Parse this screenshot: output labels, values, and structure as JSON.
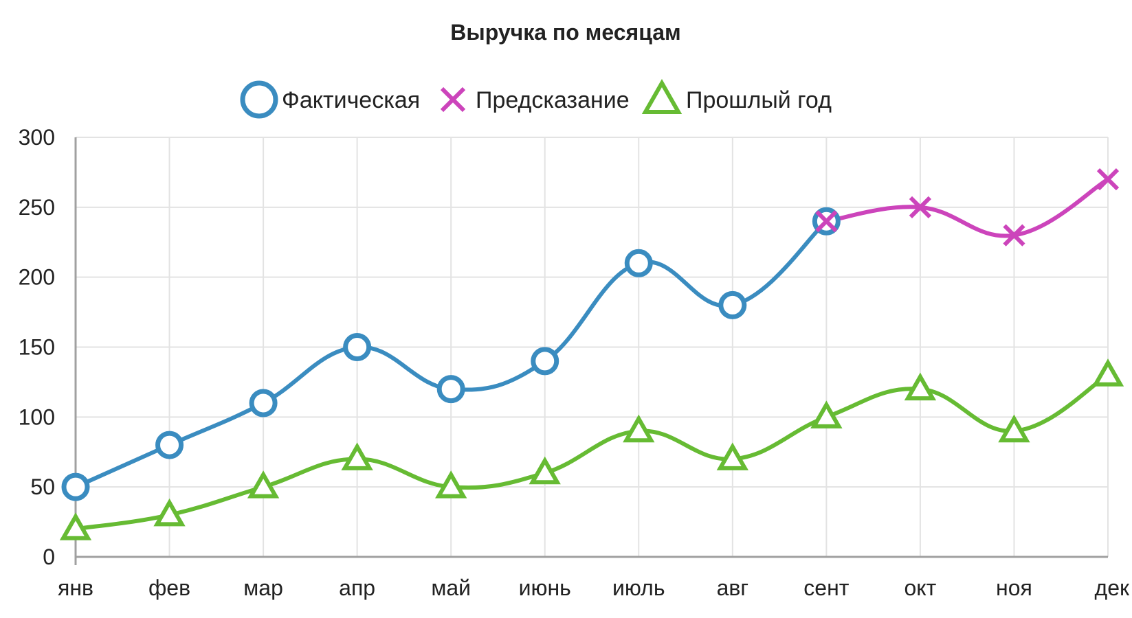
{
  "chart_data": {
    "type": "line",
    "title": "Выручка по месяцам",
    "xlabel": "",
    "ylabel": "",
    "categories": [
      "янв",
      "фев",
      "мар",
      "апр",
      "май",
      "июнь",
      "июль",
      "авг",
      "сент",
      "окт",
      "ноя",
      "дек"
    ],
    "y_ticks": [
      "0",
      "50",
      "100",
      "150",
      "200",
      "250",
      "300"
    ],
    "ylim": [
      0,
      300
    ],
    "grid": true,
    "legend_position": "top-center",
    "series": [
      {
        "name": "Фактическая",
        "color": "#3a8cc0",
        "marker": "circle",
        "values": [
          50,
          80,
          110,
          150,
          120,
          140,
          210,
          180,
          240,
          null,
          null,
          null
        ]
      },
      {
        "name": "Предсказание",
        "color": "#cc44bb",
        "marker": "cross",
        "values": [
          null,
          null,
          null,
          null,
          null,
          null,
          null,
          null,
          240,
          250,
          230,
          270
        ]
      },
      {
        "name": "Прошлый год",
        "color": "#66bb33",
        "marker": "triangle",
        "values": [
          20,
          30,
          50,
          70,
          50,
          60,
          90,
          70,
          100,
          120,
          90,
          130
        ]
      }
    ]
  }
}
